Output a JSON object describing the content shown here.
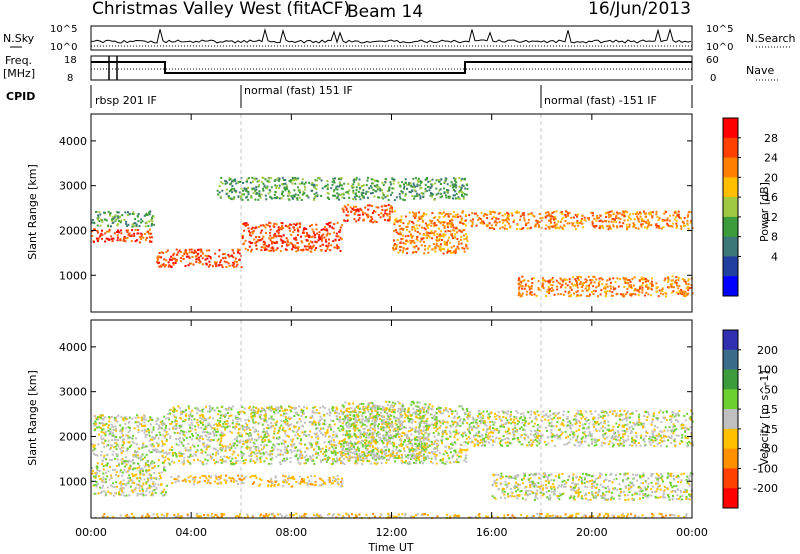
{
  "header": {
    "station": "Christmas Valley West (fitACF)",
    "beam": "Beam 14",
    "date": "16/Jun/2013"
  },
  "top_panels": {
    "nsky_label": "N.Sky",
    "nsky_ticks": [
      "10^5",
      "10^0"
    ],
    "nsearch_label": "N.Search",
    "nsearch_ticks": [
      "10^5",
      "10^0"
    ],
    "freq_label": "Freq.",
    "freq_unit": "[MHz]",
    "freq_ticks": [
      "18",
      "8"
    ],
    "nave_label": "Nave",
    "nave_ticks": [
      "60",
      "0"
    ],
    "cpid_label": "CPID",
    "cpid_segments": [
      {
        "label": "rbsp 201 IF",
        "start_hour": 0
      },
      {
        "label": "normal (fast) 151 IF",
        "start_hour": 6
      },
      {
        "label": "normal (fast) -151 IF",
        "start_hour": 18
      }
    ]
  },
  "axes": {
    "xlabel": "Time UT",
    "x_ticks": [
      "00:00",
      "04:00",
      "08:00",
      "12:00",
      "16:00",
      "20:00",
      "00:00"
    ],
    "ylabel": "Slant Range [km]",
    "y_ticks": [
      "4000",
      "3000",
      "2000",
      "1000"
    ]
  },
  "power_scale": {
    "label": "Power [dB]",
    "ticks": [
      "28",
      "24",
      "20",
      "16",
      "12",
      "8",
      "4"
    ],
    "colors": [
      "#ff0000",
      "#ff4000",
      "#ff8000",
      "#ffbf00",
      "#a0c840",
      "#3c9c3c",
      "#3c7878",
      "#2040a0",
      "#0000ff"
    ]
  },
  "velocity_scale": {
    "label": "Velocity [m s^-1]",
    "ticks": [
      "200",
      "100",
      "50",
      "15",
      "-15",
      "-50",
      "-100",
      "-200"
    ],
    "colors": [
      "#3030b0",
      "#3c6c8c",
      "#3c9c3c",
      "#6cd030",
      "#c0c0c0",
      "#ffc000",
      "#ff9000",
      "#ff4000",
      "#ff0000"
    ]
  },
  "chart_data": [
    {
      "type": "heatmap",
      "title": "Power",
      "x_range_hours": [
        0,
        24
      ],
      "y_range_km": [
        180,
        4600
      ],
      "colorbar_range_db": [
        0,
        30
      ],
      "bands": [
        {
          "x": [
            0,
            2.5
          ],
          "y_km": [
            1750,
            2050
          ],
          "value_db": 26
        },
        {
          "x": [
            0,
            2.5
          ],
          "y_km": [
            2100,
            2450
          ],
          "value_db": 12
        },
        {
          "x": [
            2.6,
            6
          ],
          "y_km": [
            1200,
            1600
          ],
          "value_db": 26
        },
        {
          "x": [
            6,
            10
          ],
          "y_km": [
            1550,
            2200
          ],
          "value_db": 26
        },
        {
          "x": [
            10,
            12
          ],
          "y_km": [
            2200,
            2600
          ],
          "value_db": 28
        },
        {
          "x": [
            12,
            15
          ],
          "y_km": [
            1500,
            2450
          ],
          "value_db": 22
        },
        {
          "x": [
            15,
            24
          ],
          "y_km": [
            2050,
            2450
          ],
          "value_db": 24
        },
        {
          "x": [
            17,
            24
          ],
          "y_km": [
            550,
            1000
          ],
          "value_db": 22
        },
        {
          "x": [
            5,
            15
          ],
          "y_km": [
            2700,
            3200
          ],
          "value_db": 10
        }
      ]
    },
    {
      "type": "heatmap",
      "title": "Velocity",
      "x_range_hours": [
        0,
        24
      ],
      "y_range_km": [
        180,
        4600
      ],
      "colorbar_range_ms": [
        -250,
        250
      ],
      "bands": [
        {
          "x": [
            0,
            3
          ],
          "y_km": [
            700,
            2500
          ],
          "value_ms": 0
        },
        {
          "x": [
            3,
            15
          ],
          "y_km": [
            1400,
            2700
          ],
          "value_ms": 0
        },
        {
          "x": [
            10,
            13.5
          ],
          "y_km": [
            1500,
            2800
          ],
          "value_ms": 30
        },
        {
          "x": [
            15,
            24
          ],
          "y_km": [
            1800,
            2600
          ],
          "value_ms": 0
        },
        {
          "x": [
            16,
            24
          ],
          "y_km": [
            600,
            1200
          ],
          "value_ms": 0
        },
        {
          "x": [
            3,
            6.5
          ],
          "y_km": [
            950,
            1150
          ],
          "value_ms": -70
        },
        {
          "x": [
            6.5,
            10
          ],
          "y_km": [
            900,
            1150
          ],
          "value_ms": -70
        },
        {
          "x": [
            0,
            24
          ],
          "y_km": [
            200,
            300
          ],
          "value_ms": -70
        }
      ]
    }
  ]
}
